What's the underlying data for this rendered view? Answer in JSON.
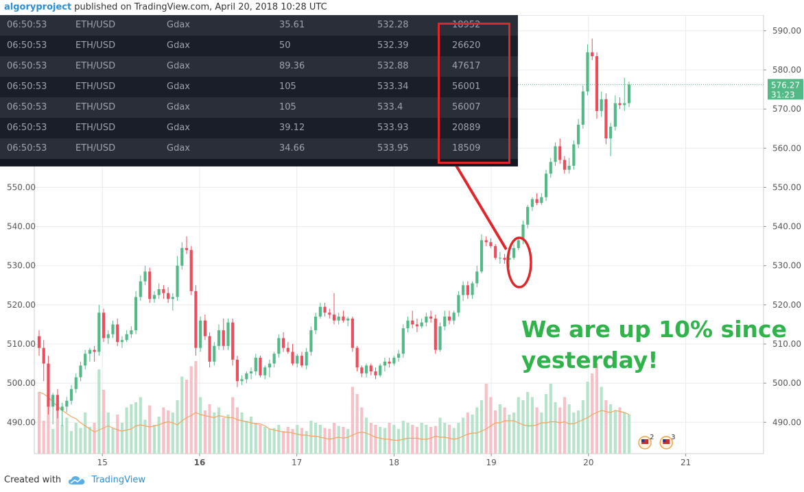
{
  "header": {
    "author": "algoryproject",
    "published_text": "published on TradingView.com, April 20, 2018 10:28 UTC"
  },
  "footer": {
    "created_with": "Created with",
    "brand": "TradingView",
    "brand_color": "#2a8fd6"
  },
  "trades": {
    "highlight_color": "#e0262a",
    "rows": [
      {
        "time": "06:50:53",
        "pair": "ETH/USD",
        "exchange": "Gdax",
        "quantity": "35.61",
        "price": "532.28",
        "id": "18952"
      },
      {
        "time": "06:50:53",
        "pair": "ETH/USD",
        "exchange": "Gdax",
        "quantity": "50",
        "price": "532.39",
        "id": "26620"
      },
      {
        "time": "06:50:53",
        "pair": "ETH/USD",
        "exchange": "Gdax",
        "quantity": "89.36",
        "price": "532.88",
        "id": "47617"
      },
      {
        "time": "06:50:53",
        "pair": "ETH/USD",
        "exchange": "Gdax",
        "quantity": "105",
        "price": "533.34",
        "id": "56001"
      },
      {
        "time": "06:50:53",
        "pair": "ETH/USD",
        "exchange": "Gdax",
        "quantity": "105",
        "price": "533.4",
        "id": "56007"
      },
      {
        "time": "06:50:53",
        "pair": "ETH/USD",
        "exchange": "Gdax",
        "quantity": "39.12",
        "price": "533.93",
        "id": "20889"
      },
      {
        "time": "06:50:53",
        "pair": "ETH/USD",
        "exchange": "Gdax",
        "quantity": "34.66",
        "price": "533.95",
        "id": "18509"
      }
    ]
  },
  "annotation": {
    "line1": "We are up 10% since",
    "line2": "yesterday!",
    "color": "#2fb34a"
  },
  "chart_data": {
    "type": "candlestick",
    "colors": {
      "up": "#53b987",
      "down": "#eb4d5c",
      "vol_up": "#b7e3cb",
      "vol_down": "#f6c0c6",
      "ma": "#f5a35c",
      "grid": "#e8ebee"
    },
    "ylim": [
      482,
      594
    ],
    "y_ticks": [
      "490.00",
      "500.00",
      "510.00",
      "520.00",
      "530.00",
      "540.00",
      "550.00",
      "560.00",
      "570.00",
      "580.00",
      "590.00"
    ],
    "x_tick_labels": [
      "15",
      "16",
      "17",
      "18",
      "19",
      "20",
      "21"
    ],
    "x_tick_values": [
      15,
      16,
      17,
      18,
      19,
      20,
      21
    ],
    "x_bold_label": "16",
    "xlim": [
      14.3,
      21.8
    ],
    "last_price_label": "576.27",
    "last_price": 576.27,
    "countdown_label": "31:23",
    "event_markers": [
      {
        "x": 20.58,
        "count": "2"
      },
      {
        "x": 20.8,
        "count": "3"
      }
    ],
    "candles": [
      [
        512.0,
        513.5,
        507.0,
        509.0
      ],
      [
        509.0,
        511.0,
        500.5,
        505.0
      ],
      [
        505.0,
        507.0,
        492.0,
        494.0
      ],
      [
        494.0,
        497.5,
        489.5,
        497.0
      ],
      [
        497.0,
        498.5,
        491.0,
        493.0
      ],
      [
        493.0,
        495.0,
        489.0,
        494.0
      ],
      [
        494.0,
        496.5,
        492.5,
        495.5
      ],
      [
        495.5,
        499.5,
        494.5,
        498.5
      ],
      [
        498.5,
        502.5,
        497.5,
        501.5
      ],
      [
        501.5,
        505.5,
        500.5,
        504.5
      ],
      [
        504.5,
        508.5,
        503.5,
        507.5
      ],
      [
        507.5,
        509.0,
        505.5,
        508.5
      ],
      [
        508.5,
        509.5,
        505.5,
        508.0
      ],
      [
        508.0,
        520.0,
        507.0,
        518.0
      ],
      [
        518.0,
        519.0,
        510.5,
        511.5
      ],
      [
        511.5,
        513.5,
        510.0,
        512.5
      ],
      [
        512.5,
        516.0,
        511.5,
        515.0
      ],
      [
        515.0,
        516.5,
        509.5,
        510.5
      ],
      [
        510.5,
        512.0,
        509.0,
        511.0
      ],
      [
        511.0,
        513.5,
        510.5,
        512.5
      ],
      [
        512.5,
        514.5,
        511.5,
        513.5
      ],
      [
        513.5,
        523.5,
        512.5,
        522.0
      ],
      [
        522.0,
        527.5,
        521.0,
        526.0
      ],
      [
        526.0,
        530.0,
        525.0,
        528.5
      ],
      [
        528.5,
        529.5,
        520.5,
        521.5
      ],
      [
        521.5,
        523.5,
        520.5,
        522.5
      ],
      [
        522.5,
        525.5,
        521.5,
        524.0
      ],
      [
        524.0,
        525.0,
        521.5,
        523.0
      ],
      [
        523.0,
        524.5,
        520.5,
        521.5
      ],
      [
        521.5,
        523.0,
        518.5,
        522.0
      ],
      [
        522.0,
        532.5,
        521.0,
        530.0
      ],
      [
        530.0,
        536.0,
        529.0,
        534.5
      ],
      [
        534.5,
        537.5,
        533.0,
        534.0
      ],
      [
        534.0,
        535.0,
        522.5,
        523.5
      ],
      [
        523.5,
        525.0,
        507.0,
        509.0
      ],
      [
        509.0,
        517.0,
        508.0,
        516.0
      ],
      [
        516.0,
        517.5,
        511.0,
        512.0
      ],
      [
        512.0,
        513.0,
        504.0,
        505.5
      ],
      [
        505.5,
        510.5,
        504.5,
        509.5
      ],
      [
        509.5,
        515.0,
        508.5,
        513.5
      ],
      [
        513.5,
        516.5,
        508.5,
        509.5
      ],
      [
        509.5,
        516.5,
        508.5,
        515.5
      ],
      [
        515.5,
        516.5,
        504.5,
        506.0
      ],
      [
        506.0,
        507.0,
        499.0,
        500.5
      ],
      [
        500.5,
        502.0,
        499.5,
        501.0
      ],
      [
        501.0,
        503.0,
        500.0,
        502.5
      ],
      [
        502.5,
        504.0,
        501.0,
        503.0
      ],
      [
        503.0,
        507.5,
        502.0,
        506.5
      ],
      [
        506.5,
        507.0,
        501.5,
        502.0
      ],
      [
        502.0,
        504.5,
        501.0,
        504.0
      ],
      [
        504.0,
        506.0,
        501.5,
        505.0
      ],
      [
        505.0,
        508.0,
        504.0,
        507.5
      ],
      [
        507.5,
        512.5,
        506.5,
        511.5
      ],
      [
        511.5,
        513.0,
        508.0,
        509.0
      ],
      [
        509.0,
        510.5,
        507.5,
        508.0
      ],
      [
        508.0,
        510.0,
        504.5,
        505.0
      ],
      [
        505.0,
        507.5,
        504.0,
        507.0
      ],
      [
        507.0,
        508.0,
        504.0,
        504.5
      ],
      [
        504.5,
        509.0,
        503.5,
        508.0
      ],
      [
        508.0,
        514.5,
        507.0,
        513.5
      ],
      [
        513.5,
        518.0,
        512.5,
        517.0
      ],
      [
        517.0,
        520.5,
        516.5,
        519.5
      ],
      [
        519.5,
        520.5,
        517.0,
        518.0
      ],
      [
        518.0,
        519.0,
        516.5,
        517.5
      ],
      [
        517.5,
        523.0,
        515.0,
        516.0
      ],
      [
        516.0,
        518.0,
        515.0,
        517.0
      ],
      [
        517.0,
        518.5,
        515.5,
        516.0
      ],
      [
        516.0,
        517.0,
        514.5,
        516.5
      ],
      [
        516.5,
        517.0,
        508.0,
        509.0
      ],
      [
        509.0,
        509.5,
        503.0,
        504.0
      ],
      [
        504.0,
        504.5,
        501.5,
        502.5
      ],
      [
        502.5,
        505.0,
        501.5,
        504.5
      ],
      [
        504.5,
        505.0,
        502.0,
        503.0
      ],
      [
        503.0,
        504.0,
        501.0,
        502.0
      ],
      [
        502.0,
        505.0,
        501.5,
        504.5
      ],
      [
        504.5,
        506.5,
        503.0,
        505.5
      ],
      [
        505.5,
        506.5,
        504.0,
        505.0
      ],
      [
        505.0,
        507.0,
        504.5,
        506.5
      ],
      [
        506.5,
        508.5,
        505.5,
        507.5
      ],
      [
        507.5,
        515.0,
        506.5,
        514.0
      ],
      [
        514.0,
        517.0,
        513.0,
        516.0
      ],
      [
        516.0,
        518.5,
        514.0,
        515.0
      ],
      [
        515.0,
        516.5,
        513.0,
        514.5
      ],
      [
        514.5,
        516.5,
        514.0,
        515.5
      ],
      [
        515.5,
        518.0,
        514.5,
        517.0
      ],
      [
        517.0,
        518.5,
        515.5,
        516.5
      ],
      [
        516.5,
        517.5,
        507.5,
        508.5
      ],
      [
        508.5,
        515.5,
        508.0,
        514.5
      ],
      [
        514.5,
        518.5,
        513.5,
        517.0
      ],
      [
        517.0,
        518.5,
        515.0,
        516.0
      ],
      [
        516.0,
        518.5,
        515.0,
        518.0
      ],
      [
        518.0,
        523.5,
        517.0,
        522.5
      ],
      [
        522.5,
        526.0,
        521.0,
        525.0
      ],
      [
        525.0,
        526.0,
        521.5,
        522.5
      ],
      [
        522.5,
        526.0,
        521.5,
        525.5
      ],
      [
        525.5,
        530.0,
        524.5,
        528.5
      ],
      [
        528.5,
        538.0,
        528.0,
        536.5
      ],
      [
        536.5,
        537.5,
        535.0,
        536.0
      ],
      [
        536.0,
        537.0,
        534.5,
        535.0
      ],
      [
        535.0,
        535.5,
        531.5,
        532.0
      ],
      [
        532.0,
        533.5,
        530.5,
        532.0
      ],
      [
        532.0,
        533.0,
        530.5,
        531.5
      ],
      [
        531.5,
        533.0,
        529.5,
        532.0
      ],
      [
        532.0,
        535.5,
        531.5,
        534.5
      ],
      [
        534.5,
        537.0,
        534.0,
        536.5
      ],
      [
        536.5,
        541.5,
        535.5,
        540.5
      ],
      [
        540.5,
        545.5,
        539.5,
        545.0
      ],
      [
        545.0,
        547.5,
        544.0,
        547.0
      ],
      [
        547.0,
        548.5,
        545.5,
        546.0
      ],
      [
        546.0,
        548.5,
        545.5,
        547.5
      ],
      [
        547.5,
        554.5,
        546.5,
        553.5
      ],
      [
        553.5,
        557.5,
        552.5,
        556.5
      ],
      [
        556.5,
        561.5,
        555.5,
        560.5
      ],
      [
        560.5,
        562.5,
        556.0,
        557.0
      ],
      [
        557.0,
        558.0,
        553.5,
        554.5
      ],
      [
        554.5,
        557.5,
        553.5,
        555.5
      ],
      [
        555.5,
        562.0,
        554.5,
        561.0
      ],
      [
        561.0,
        567.5,
        560.0,
        566.0
      ],
      [
        566.0,
        576.0,
        565.0,
        574.5
      ],
      [
        574.5,
        586.5,
        573.5,
        584.5
      ],
      [
        584.5,
        588.0,
        582.5,
        583.5
      ],
      [
        583.5,
        584.5,
        567.5,
        569.5
      ],
      [
        569.5,
        574.5,
        568.0,
        572.5
      ],
      [
        572.5,
        574.0,
        561.0,
        562.5
      ],
      [
        562.5,
        566.5,
        558.0,
        565.5
      ],
      [
        565.5,
        573.5,
        564.5,
        571.5
      ],
      [
        571.5,
        573.0,
        570.0,
        571.0
      ],
      [
        571.0,
        578.0,
        569.5,
        571.5
      ],
      [
        571.5,
        577.0,
        570.5,
        576.27
      ]
    ],
    "volume_ma": [
      0.6,
      0.58,
      0.55,
      0.5,
      0.46,
      0.42,
      0.39,
      0.36,
      0.34,
      0.3,
      0.27,
      0.24,
      0.21,
      0.23,
      0.25,
      0.27,
      0.25,
      0.23,
      0.22,
      0.23,
      0.24,
      0.27,
      0.28,
      0.27,
      0.26,
      0.27,
      0.28,
      0.3,
      0.31,
      0.3,
      0.28,
      0.32,
      0.35,
      0.37,
      0.4,
      0.38,
      0.37,
      0.36,
      0.35,
      0.37,
      0.36,
      0.35,
      0.35,
      0.33,
      0.32,
      0.31,
      0.3,
      0.29,
      0.29,
      0.27,
      0.24,
      0.23,
      0.22,
      0.21,
      0.21,
      0.2,
      0.19,
      0.18,
      0.18,
      0.17,
      0.17,
      0.16,
      0.15,
      0.14,
      0.15,
      0.16,
      0.15,
      0.16,
      0.18,
      0.2,
      0.21,
      0.2,
      0.18,
      0.16,
      0.15,
      0.14,
      0.14,
      0.13,
      0.13,
      0.14,
      0.15,
      0.15,
      0.15,
      0.14,
      0.14,
      0.15,
      0.17,
      0.16,
      0.16,
      0.15,
      0.14,
      0.15,
      0.17,
      0.19,
      0.2,
      0.2,
      0.22,
      0.24,
      0.27,
      0.3,
      0.3,
      0.32,
      0.32,
      0.32,
      0.3,
      0.28,
      0.27,
      0.27,
      0.28,
      0.3,
      0.3,
      0.31,
      0.31,
      0.3,
      0.31,
      0.29,
      0.29,
      0.31,
      0.33,
      0.35,
      0.38,
      0.4,
      0.42,
      0.41,
      0.4,
      0.42,
      0.41,
      0.4,
      0.38
    ],
    "volumes": [
      0.6,
      0.32,
      0.5,
      0.24,
      0.45,
      0.28,
      0.35,
      0.22,
      0.3,
      0.25,
      0.4,
      0.26,
      0.3,
      0.82,
      0.62,
      0.4,
      0.25,
      0.38,
      0.3,
      0.45,
      0.48,
      0.5,
      0.55,
      0.33,
      0.47,
      0.28,
      0.36,
      0.45,
      0.42,
      0.4,
      0.52,
      0.75,
      0.72,
      0.85,
      0.9,
      0.55,
      0.42,
      0.48,
      0.4,
      0.45,
      0.35,
      0.38,
      0.55,
      0.45,
      0.4,
      0.32,
      0.36,
      0.3,
      0.28,
      0.26,
      0.24,
      0.25,
      0.28,
      0.22,
      0.26,
      0.24,
      0.28,
      0.25,
      0.22,
      0.32,
      0.3,
      0.28,
      0.25,
      0.24,
      0.3,
      0.27,
      0.26,
      0.24,
      0.65,
      0.58,
      0.45,
      0.35,
      0.3,
      0.28,
      0.26,
      0.25,
      0.3,
      0.28,
      0.24,
      0.32,
      0.3,
      0.28,
      0.26,
      0.3,
      0.28,
      0.26,
      0.27,
      0.35,
      0.3,
      0.28,
      0.25,
      0.3,
      0.35,
      0.4,
      0.38,
      0.45,
      0.52,
      0.68,
      0.55,
      0.42,
      0.48,
      0.45,
      0.38,
      0.4,
      0.55,
      0.52,
      0.6,
      0.55,
      0.45,
      0.4,
      0.58,
      0.68,
      0.5,
      0.45,
      0.55,
      0.48,
      0.4,
      0.42,
      0.52,
      0.7,
      0.78,
      0.88,
      0.65,
      0.52,
      0.48,
      0.42,
      0.45,
      0.4,
      0.38
    ]
  }
}
